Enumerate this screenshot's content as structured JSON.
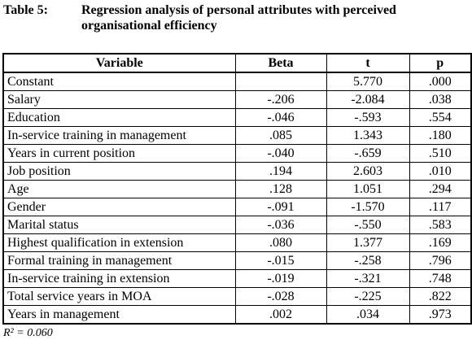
{
  "caption": {
    "label": "Table 5:",
    "title": "Regression analysis of personal attributes with perceived organisational efficiency"
  },
  "table": {
    "headers": [
      "Variable",
      "Beta",
      "t",
      "p"
    ],
    "rows": [
      {
        "variable": "Constant",
        "beta": "",
        "t": "5.770",
        "p": ".000"
      },
      {
        "variable": "Salary",
        "beta": "-.206",
        "t": "-2.084",
        "p": ".038"
      },
      {
        "variable": "Education",
        "beta": "-.046",
        "t": "-.593",
        "p": ".554"
      },
      {
        "variable": "In-service training in management",
        "beta": ".085",
        "t": "1.343",
        "p": ".180"
      },
      {
        "variable": "Years in current position",
        "beta": "-.040",
        "t": "-.659",
        "p": ".510"
      },
      {
        "variable": "Job position",
        "beta": ".194",
        "t": "2.603",
        "p": ".010"
      },
      {
        "variable": "Age",
        "beta": ".128",
        "t": "1.051",
        "p": ".294"
      },
      {
        "variable": "Gender",
        "beta": "-.091",
        "t": "-1.570",
        "p": ".117"
      },
      {
        "variable": "Marital status",
        "beta": "-.036",
        "t": "-.550",
        "p": ".583"
      },
      {
        "variable": "Highest qualification in extension",
        "beta": ".080",
        "t": "1.377",
        "p": ".169"
      },
      {
        "variable": "Formal training in management",
        "beta": "-.015",
        "t": "-.258",
        "p": ".796"
      },
      {
        "variable": "In-service training in extension",
        "beta": "-.019",
        "t": "-.321",
        "p": ".748"
      },
      {
        "variable": "Total service years in MOA",
        "beta": "-.028",
        "t": "-.225",
        "p": ".822"
      },
      {
        "variable": "Years in management",
        "beta": ".002",
        "t": ".034",
        "p": ".973"
      }
    ]
  },
  "footnote": "R² = 0.060"
}
